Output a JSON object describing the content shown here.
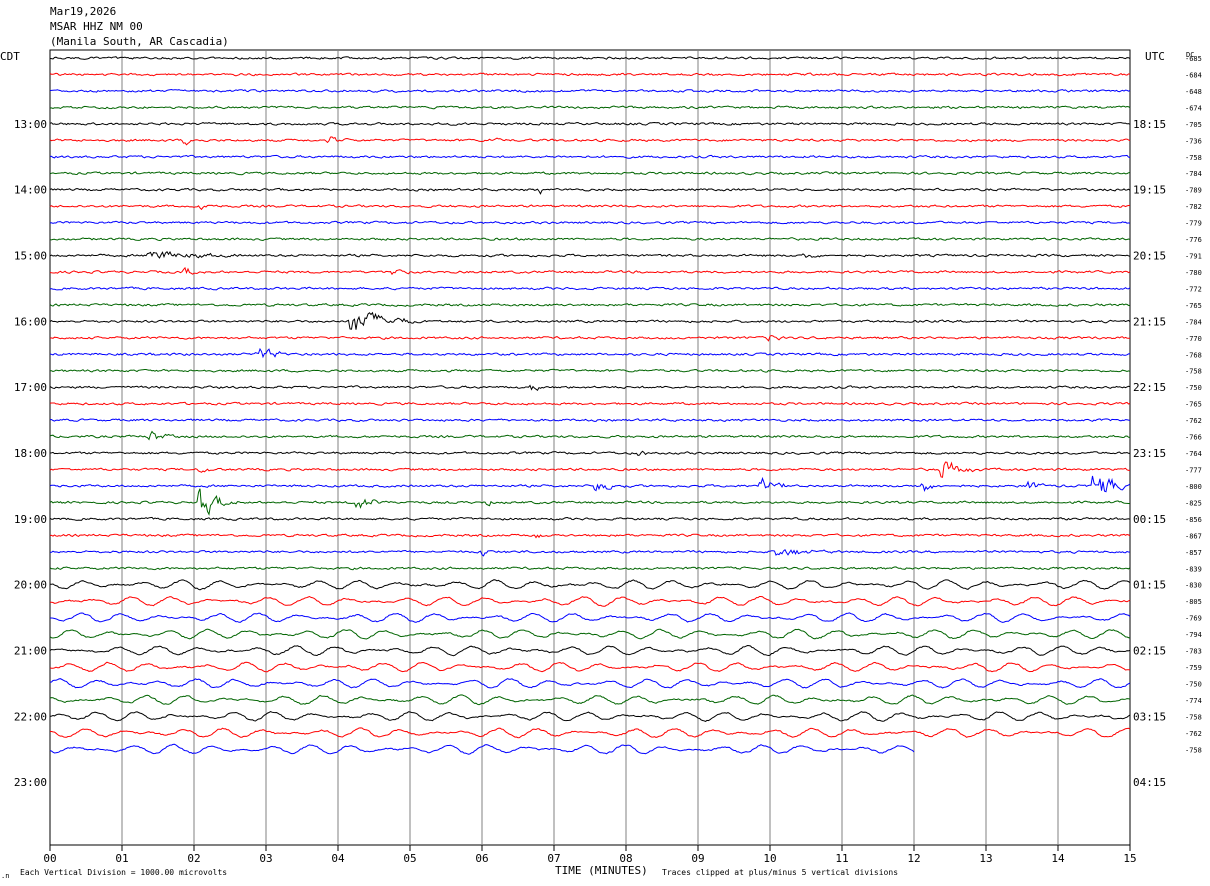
{
  "header": {
    "line1": "Mar19,2026",
    "line2": "MSAR HHZ NM 00",
    "line3": "(Manila South, AR Cascadia)"
  },
  "left_tz": "CDT",
  "right_tz": "UTC",
  "dc_label": "DC",
  "footer": {
    "scale": "Each Vertical Division = 1000.00 microvolts",
    "xlabel": "TIME (MINUTES)",
    "clip": "Traces clipped at plus/minus 5 vertical divisions"
  },
  "chart_data": {
    "type": "line",
    "title": "MSAR HHZ NM 00",
    "xlabel": "TIME (MINUTES)",
    "xlim": [
      0,
      15
    ],
    "x_ticks": [
      "00",
      "01",
      "02",
      "03",
      "04",
      "05",
      "06",
      "07",
      "08",
      "09",
      "10",
      "11",
      "12",
      "13",
      "14",
      "15"
    ],
    "grid": "vertical lines each minute",
    "trace_colors": [
      "#000000",
      "#ff0000",
      "#0000ff",
      "#006400"
    ],
    "left_hour_labels": [
      "13:00",
      "14:00",
      "15:00",
      "16:00",
      "17:00",
      "18:00",
      "19:00",
      "20:00",
      "21:00",
      "22:00",
      "23:00"
    ],
    "right_hour_labels": [
      "18:15",
      "19:15",
      "20:15",
      "21:15",
      "22:15",
      "23:15",
      "00:15",
      "01:15",
      "02:15",
      "03:15",
      "04:15"
    ],
    "dc_offsets": [
      -685,
      -684,
      -648,
      -674,
      -705,
      -736,
      -758,
      -784,
      -789,
      -782,
      -779,
      -776,
      -791,
      -780,
      -772,
      -765,
      -784,
      -770,
      -768,
      -758,
      -750,
      -765,
      -762,
      -766,
      -764,
      -777,
      -800,
      -825,
      -856,
      -867,
      -857,
      -839,
      -830,
      -805,
      -769,
      -794,
      -783,
      -759,
      -750,
      -774,
      -758,
      -762,
      -758
    ]
  }
}
